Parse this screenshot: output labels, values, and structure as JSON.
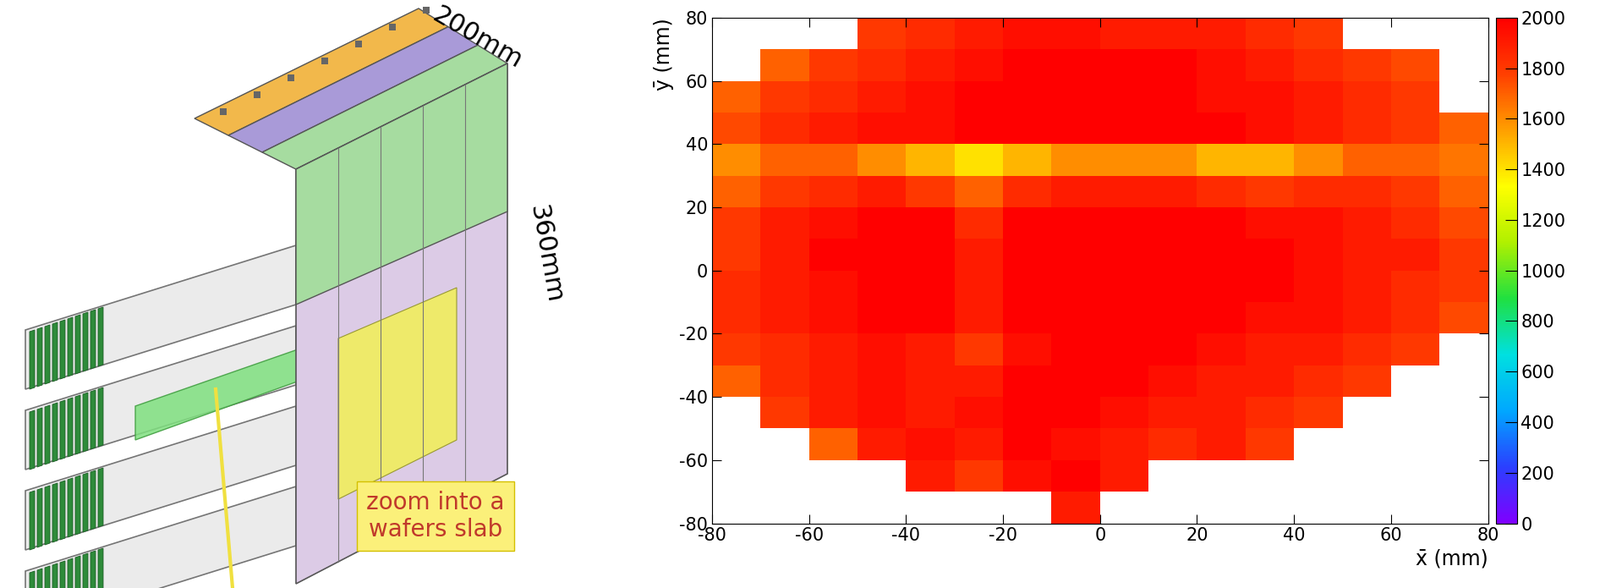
{
  "chart_data": {
    "type": "heatmap",
    "x_label": "x̄ (mm)",
    "y_label": "ȳ (mm)",
    "annotations": [
      "200mm",
      "360mm",
      "zoom into a\nwafers slab"
    ],
    "x_bins": [
      -80,
      -70,
      -60,
      -50,
      -40,
      -30,
      -20,
      -10,
      0,
      10,
      20,
      30,
      40,
      50,
      60,
      70,
      80
    ],
    "y_bins": [
      -80,
      -70,
      -60,
      -50,
      -40,
      -30,
      -20,
      -10,
      0,
      10,
      20,
      30,
      40,
      50,
      60,
      70,
      80
    ],
    "cells": [
      [
        null,
        null,
        null,
        null,
        null,
        null,
        null,
        1900,
        null,
        null,
        null,
        null,
        null,
        null,
        null,
        null
      ],
      [
        null,
        null,
        null,
        null,
        1900,
        1800,
        1950,
        2000,
        1900,
        null,
        null,
        null,
        null,
        null,
        null,
        null
      ],
      [
        null,
        null,
        1700,
        1900,
        1950,
        1900,
        2000,
        1950,
        1900,
        1850,
        1900,
        1800,
        null,
        null,
        null,
        null
      ],
      [
        null,
        1800,
        1900,
        1950,
        1900,
        1950,
        2000,
        2000,
        1950,
        1900,
        1900,
        1850,
        1800,
        null,
        null,
        null
      ],
      [
        1700,
        1850,
        1900,
        1950,
        1900,
        1900,
        2000,
        2000,
        2000,
        1950,
        1900,
        1900,
        1850,
        1800,
        null,
        null
      ],
      [
        1800,
        1850,
        1900,
        1950,
        1900,
        1800,
        1950,
        2000,
        2000,
        2000,
        1950,
        1900,
        1900,
        1850,
        1800,
        null
      ],
      [
        1850,
        1900,
        1950,
        2000,
        2000,
        1900,
        2000,
        2000,
        2000,
        2000,
        2000,
        1950,
        1950,
        1900,
        1850,
        1750
      ],
      [
        1850,
        1900,
        1950,
        2000,
        2000,
        1900,
        2000,
        2000,
        2000,
        2000,
        2000,
        2000,
        1950,
        1900,
        1850,
        1800
      ],
      [
        1800,
        1900,
        2000,
        2000,
        2000,
        1900,
        2000,
        2000,
        2000,
        2000,
        2000,
        2000,
        1950,
        1900,
        1900,
        1800
      ],
      [
        1800,
        1900,
        1950,
        2000,
        2000,
        1850,
        2000,
        2000,
        2000,
        2000,
        2000,
        1950,
        1950,
        1900,
        1850,
        1750
      ],
      [
        1700,
        1800,
        1850,
        1900,
        1800,
        1700,
        1850,
        1900,
        1900,
        1900,
        1850,
        1800,
        1850,
        1850,
        1800,
        1700
      ],
      [
        1600,
        1700,
        1700,
        1600,
        1500,
        1400,
        1500,
        1600,
        1600,
        1600,
        1500,
        1500,
        1600,
        1700,
        1700,
        1650
      ],
      [
        1750,
        1850,
        1900,
        1950,
        1950,
        2000,
        2000,
        2000,
        2000,
        2000,
        2000,
        1950,
        1900,
        1850,
        1800,
        1700
      ],
      [
        1700,
        1800,
        1850,
        1900,
        1950,
        2000,
        2000,
        2000,
        2000,
        2000,
        1950,
        1950,
        1900,
        1850,
        1800,
        null
      ],
      [
        null,
        1700,
        1800,
        1850,
        1900,
        1950,
        2000,
        2000,
        2000,
        2000,
        1950,
        1900,
        1850,
        1800,
        1750,
        null
      ],
      [
        null,
        null,
        null,
        1800,
        1850,
        1900,
        1950,
        1950,
        1900,
        1900,
        1900,
        1850,
        1800,
        null,
        null,
        null
      ]
    ],
    "xlim": [
      -80,
      80
    ],
    "ylim": [
      -80,
      80
    ],
    "xticks": [
      -80,
      -60,
      -40,
      -20,
      0,
      20,
      40,
      60,
      80
    ],
    "yticks": [
      -80,
      -60,
      -40,
      -20,
      0,
      20,
      40,
      60,
      80
    ],
    "colorbar": {
      "range": [
        0,
        2000
      ],
      "ticks": [
        0,
        200,
        400,
        600,
        800,
        1000,
        1200,
        1400,
        1600,
        1800,
        2000
      ]
    },
    "grid": false
  }
}
